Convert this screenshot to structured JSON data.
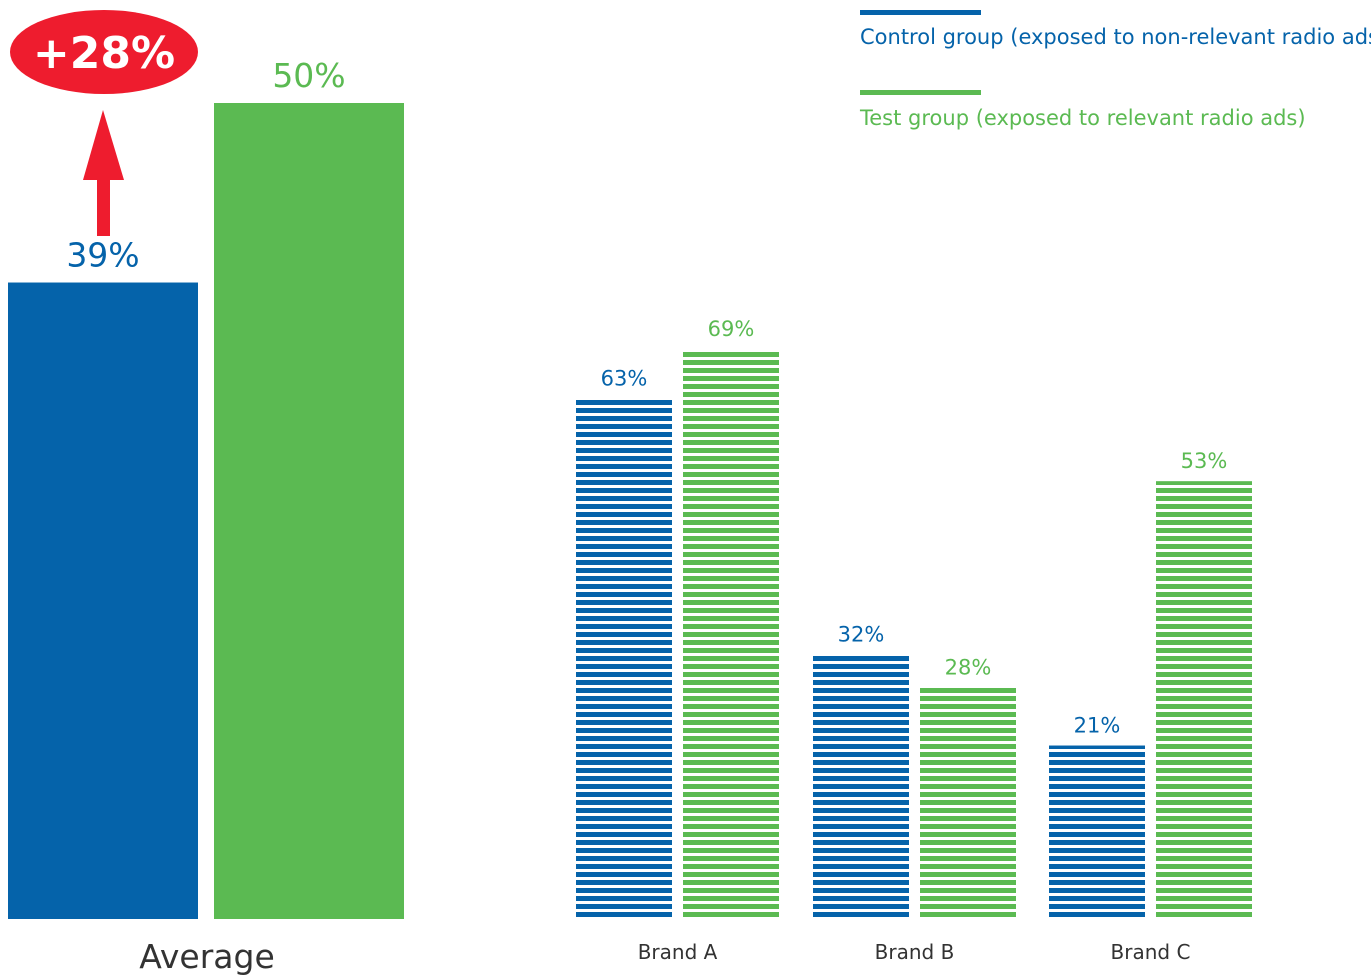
{
  "colors": {
    "control": "#0563AA",
    "test": "#5BBA52",
    "highlight": "#EE1C2E"
  },
  "legend": {
    "control_label": "Control group (exposed to non-relevant radio ads)",
    "test_label": "Test group (exposed to relevant radio ads)"
  },
  "chart_data": [
    {
      "type": "bar",
      "categories": [
        "Average"
      ],
      "series": [
        {
          "name": "Control group (exposed to non-relevant radio ads)",
          "values": [
            39
          ],
          "labels": [
            "39%"
          ]
        },
        {
          "name": "Test group (exposed to relevant radio ads)",
          "values": [
            50
          ],
          "labels": [
            "50%"
          ]
        }
      ],
      "annotation": {
        "text": "+28%",
        "shape": "red ellipse with upward arrow"
      },
      "ylim": [
        0,
        50
      ]
    },
    {
      "type": "bar",
      "style": "horizontal-striped",
      "categories": [
        "Brand A",
        "Brand B",
        "Brand C"
      ],
      "series": [
        {
          "name": "Control group (exposed to non-relevant radio ads)",
          "values": [
            63,
            32,
            21
          ],
          "labels": [
            "63%",
            "32%",
            "21%"
          ]
        },
        {
          "name": "Test group (exposed to relevant radio ads)",
          "values": [
            69,
            28,
            53
          ],
          "labels": [
            "69%",
            "28%",
            "53%"
          ]
        }
      ],
      "ylim": [
        0,
        69
      ]
    }
  ]
}
